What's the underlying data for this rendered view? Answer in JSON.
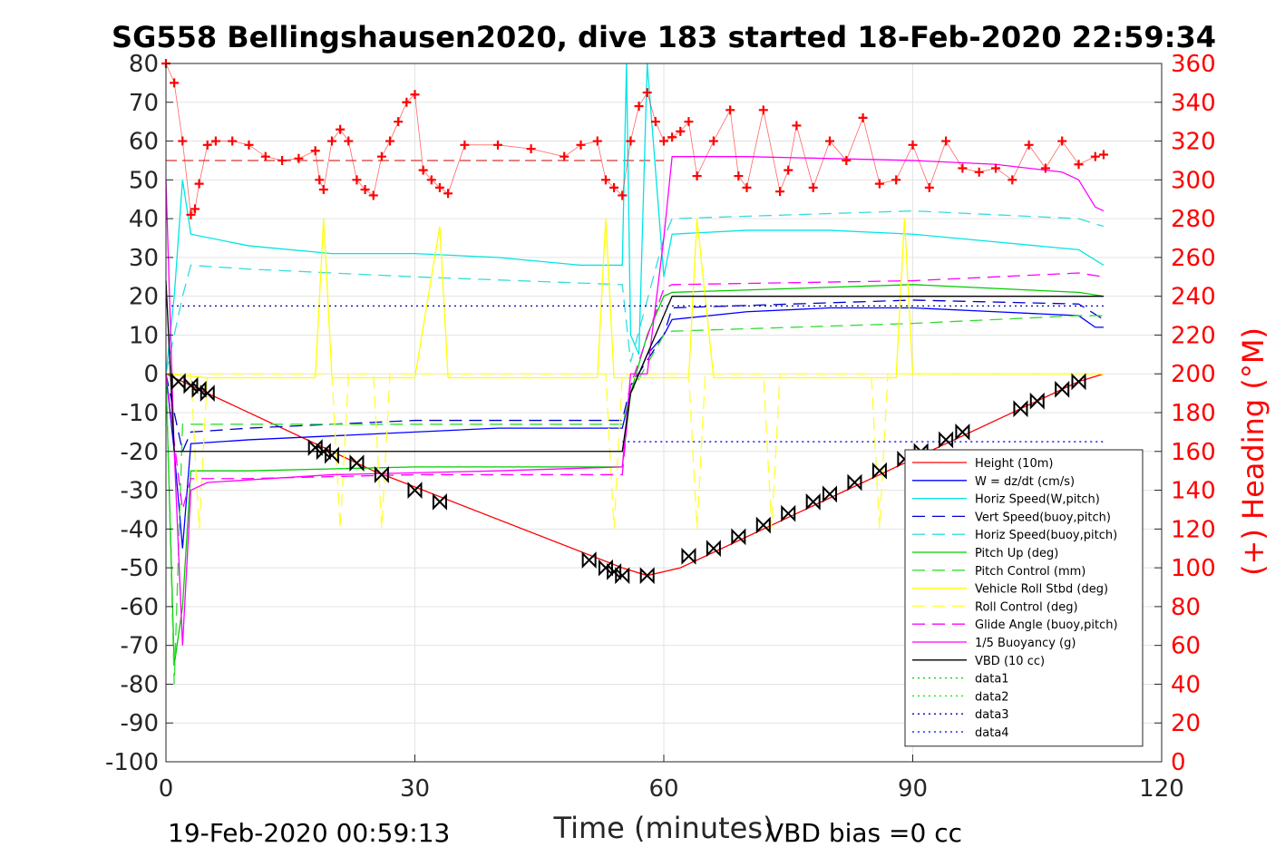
{
  "chart_data": {
    "type": "line",
    "title": "SG558 Bellingshausen2020, dive 183 started 18-Feb-2020 22:59:34",
    "xlabel": "Time (minutes)",
    "ylabel_right": "(+) Heading (°M)",
    "footer_left": "19-Feb-2020 00:59:13",
    "footer_right": "VBD bias =0 cc",
    "xlim": [
      0,
      120
    ],
    "ylim": [
      -100,
      80
    ],
    "y2lim": [
      0,
      360
    ],
    "x_ticks": [
      "0",
      "30",
      "60",
      "90",
      "120"
    ],
    "y_ticks": [
      "80",
      "70",
      "60",
      "50",
      "40",
      "30",
      "20",
      "10",
      "0",
      "-10",
      "-20",
      "-30",
      "-40",
      "-50",
      "-60",
      "-70",
      "-80",
      "-90",
      "-100"
    ],
    "y2_ticks": [
      "360",
      "340",
      "320",
      "300",
      "280",
      "260",
      "240",
      "220",
      "200",
      "180",
      "160",
      "140",
      "120",
      "100",
      "80",
      "60",
      "40",
      "20",
      "0"
    ],
    "grid": true,
    "legend_position": "bottom-right",
    "series": [
      {
        "name": "Height (10m)",
        "color": "#ff0000",
        "style": "solid",
        "x": [
          0,
          2,
          25,
          55,
          58,
          62,
          80,
          100,
          110,
          113
        ],
        "y": [
          0,
          -2,
          -25,
          -50,
          -52,
          -50,
          -32,
          -12,
          -2,
          0
        ]
      },
      {
        "name": "W = dz/dt (cm/s)",
        "color": "#0000ff",
        "style": "solid",
        "x": [
          0,
          1,
          2,
          3,
          10,
          20,
          30,
          40,
          50,
          55,
          56,
          58,
          60,
          61,
          70,
          80,
          90,
          100,
          110,
          112,
          113
        ],
        "y": [
          0,
          -20,
          -45,
          -18,
          -17,
          -16,
          -15,
          -14,
          -14,
          -14,
          -5,
          5,
          10,
          14,
          16,
          17,
          17,
          16,
          15,
          12,
          12
        ]
      },
      {
        "name": "Horiz Speed(W,pitch)",
        "color": "#00e5e5",
        "style": "solid",
        "x": [
          0,
          1,
          2,
          3,
          10,
          20,
          30,
          40,
          50,
          55,
          55.5,
          56,
          57,
          58,
          60,
          61,
          70,
          80,
          90,
          100,
          110,
          113
        ],
        "y": [
          0,
          20,
          50,
          36,
          33,
          31,
          31,
          30,
          28,
          28,
          80,
          10,
          5,
          80,
          25,
          36,
          37,
          37,
          36,
          34,
          32,
          28
        ]
      },
      {
        "name": "Vert Speed(buoy,pitch)",
        "color": "#0000cc",
        "style": "dashed",
        "x": [
          0,
          2,
          3,
          10,
          30,
          55,
          56,
          60,
          61,
          90,
          110,
          113
        ],
        "y": [
          0,
          -20,
          -15,
          -14,
          -12,
          -12,
          -3,
          10,
          17,
          19,
          18,
          14
        ]
      },
      {
        "name": "Horiz Speed(buoy,pitch)",
        "color": "#33dddd",
        "style": "dashed",
        "x": [
          0,
          2,
          3,
          10,
          30,
          55,
          56,
          60,
          61,
          90,
          110,
          113
        ],
        "y": [
          0,
          20,
          28,
          27,
          25,
          23,
          3,
          35,
          40,
          42,
          40,
          38
        ]
      },
      {
        "name": "Pitch Up (deg)",
        "color": "#00cc00",
        "style": "solid",
        "x": [
          0,
          1,
          2,
          3,
          10,
          30,
          55,
          56,
          58,
          60,
          61,
          90,
          110,
          113
        ],
        "y": [
          0,
          -75,
          -60,
          -25,
          -25,
          -24,
          -24,
          -5,
          10,
          20,
          21,
          23,
          21,
          20
        ]
      },
      {
        "name": "Pitch Control (mm)",
        "color": "#33dd33",
        "style": "dashed",
        "x": [
          0,
          1,
          2,
          3,
          55,
          56,
          60,
          61,
          90,
          110,
          113
        ],
        "y": [
          0,
          -80,
          -13,
          -13,
          -13,
          -5,
          10,
          11,
          13,
          15,
          15
        ]
      },
      {
        "name": "Vehicle Roll Stbd (deg)",
        "color": "#ffff00",
        "style": "solid",
        "x": [
          0,
          5,
          18,
          19,
          20,
          30,
          33,
          34,
          52,
          53,
          54,
          55,
          60,
          63,
          64,
          66,
          88,
          89,
          90,
          110,
          113
        ],
        "y": [
          0,
          -1,
          -1,
          40,
          -1,
          -1,
          38,
          -1,
          -1,
          40,
          -1,
          -1,
          -1,
          -1,
          40,
          -1,
          -1,
          40,
          0,
          0,
          0
        ]
      },
      {
        "name": "Roll Control (deg)",
        "color": "#ffff33",
        "style": "dashed",
        "x": [
          0,
          3,
          4,
          5,
          20,
          21,
          22,
          25,
          26,
          27,
          53,
          54,
          55,
          63,
          64,
          65,
          72,
          73,
          74,
          85,
          86,
          87,
          113
        ],
        "y": [
          0,
          0,
          -40,
          0,
          0,
          -40,
          0,
          0,
          -40,
          0,
          0,
          -40,
          0,
          0,
          -40,
          0,
          0,
          -40,
          0,
          0,
          -40,
          0,
          0
        ]
      },
      {
        "name": "Glide Angle (buoy,pitch)",
        "color": "#ff00ff",
        "style": "dashed",
        "x": [
          0,
          2,
          3,
          10,
          30,
          55,
          56,
          60,
          61,
          90,
          110,
          113
        ],
        "y": [
          0,
          -35,
          -27,
          -27,
          -26,
          -26,
          -3,
          22,
          23,
          24,
          26,
          25
        ]
      },
      {
        "name": "1/5 Buoyancy (g)",
        "color": "#ff00ff",
        "style": "solid",
        "x": [
          0,
          1,
          2,
          3,
          5,
          20,
          40,
          55,
          56,
          58,
          60,
          61,
          70,
          90,
          100,
          108,
          110,
          112,
          113
        ],
        "y": [
          50,
          -20,
          -70,
          -30,
          -28,
          -26,
          -25,
          -24,
          0,
          0,
          35,
          56,
          56,
          55,
          54,
          52,
          50,
          43,
          42
        ]
      },
      {
        "name": "VBD (10 cc)",
        "color": "#000000",
        "style": "solid",
        "x": [
          0,
          1,
          2,
          55,
          56,
          60,
          61,
          113
        ],
        "y": [
          24,
          -20,
          -20,
          -20,
          -5,
          15,
          20,
          20
        ]
      },
      {
        "name": "data1",
        "color": "#00cc00",
        "style": "dotted",
        "x": [],
        "y": []
      },
      {
        "name": "data2",
        "color": "#00ee00",
        "style": "dotted",
        "x": [],
        "y": []
      },
      {
        "name": "data3",
        "color": "#0000aa",
        "style": "dotted",
        "x": [
          0,
          113
        ],
        "y": [
          17.5,
          17.5
        ]
      },
      {
        "name": "data4",
        "color": "#0000ff",
        "style": "dotted",
        "x": [
          55,
          113
        ],
        "y": [
          -17.5,
          -17.5
        ]
      }
    ],
    "heading_series": {
      "name": "Heading",
      "color": "#ff0000",
      "axis": "right",
      "marker": "+",
      "x": [
        0,
        1,
        2,
        3,
        3.5,
        4,
        5,
        6,
        8,
        10,
        12,
        14,
        16,
        18,
        18.5,
        19,
        20,
        21,
        22,
        23,
        24,
        25,
        26,
        27,
        28,
        29,
        30,
        31,
        32,
        33,
        34,
        36,
        40,
        44,
        48,
        50,
        52,
        53,
        54,
        55,
        56,
        57,
        58,
        59,
        60,
        61,
        62,
        63,
        64,
        66,
        68,
        69,
        70,
        72,
        74,
        75,
        76,
        78,
        80,
        82,
        84,
        86,
        88,
        90,
        92,
        94,
        96,
        98,
        100,
        102,
        104,
        106,
        108,
        110,
        112,
        113
      ],
      "y": [
        360,
        350,
        320,
        282,
        285,
        298,
        318,
        320,
        320,
        318,
        312,
        310,
        311,
        315,
        300,
        295,
        320,
        326,
        320,
        300,
        295,
        292,
        312,
        320,
        330,
        340,
        344,
        305,
        300,
        296,
        293,
        318,
        318,
        316,
        312,
        318,
        320,
        300,
        296,
        292,
        320,
        338,
        345,
        330,
        320,
        322,
        325,
        330,
        302,
        320,
        336,
        302,
        296,
        336,
        294,
        305,
        328,
        296,
        320,
        310,
        332,
        298,
        300,
        318,
        296,
        320,
        306,
        304,
        306,
        300,
        318,
        306,
        320,
        308,
        312,
        313
      ]
    },
    "height_markers": {
      "marker": "triangle/hourglass",
      "color": "#000000",
      "x": [
        1.5,
        3,
        4,
        5,
        18,
        19,
        20,
        23,
        26,
        30,
        33,
        51,
        53,
        54,
        55,
        58,
        63,
        66,
        69,
        72,
        75,
        78,
        80,
        83,
        86,
        89,
        91,
        94,
        96,
        103,
        105,
        108,
        110
      ],
      "y": [
        -2,
        -3,
        -4,
        -5,
        -19,
        -20,
        -21,
        -23,
        -26,
        -30,
        -33,
        -48,
        -50,
        -51,
        -52,
        -52,
        -47,
        -45,
        -42,
        -39,
        -36,
        -33,
        -31,
        -28,
        -25,
        -22,
        -20,
        -17,
        -15,
        -9,
        -7,
        -4,
        -2
      ]
    },
    "reference_lines": {
      "color": "#cc0000",
      "style": "dashed",
      "x": [
        0,
        60
      ],
      "y": [
        55,
        55
      ]
    }
  }
}
